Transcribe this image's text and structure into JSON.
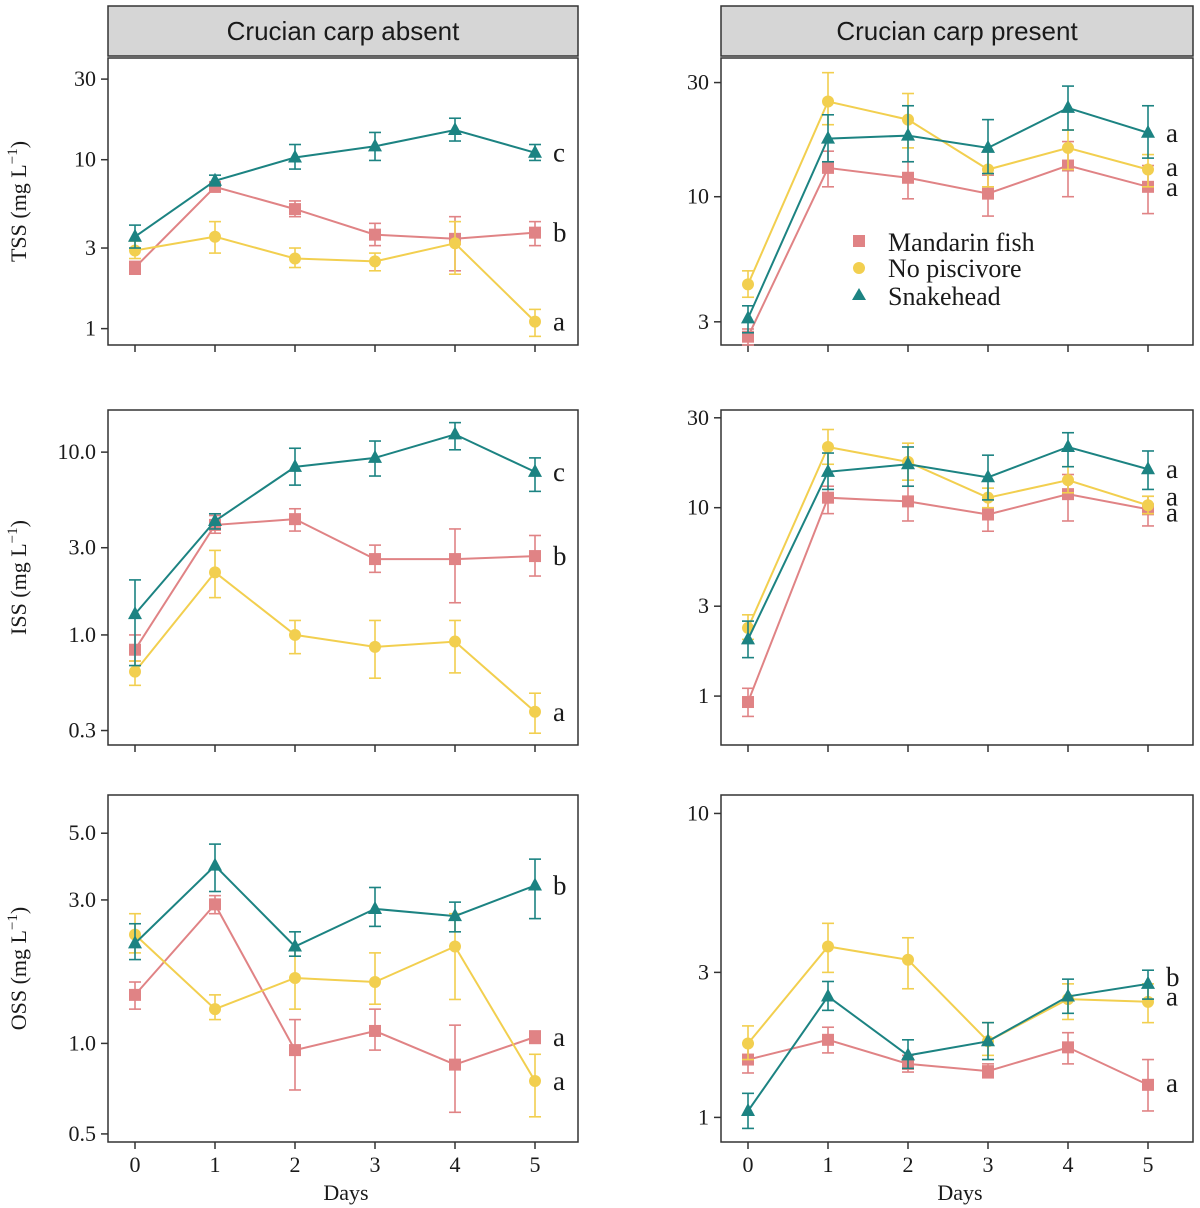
{
  "chart_data": {
    "type": "line",
    "facet_columns": [
      "Crucian carp absent",
      "Crucian carp present"
    ],
    "xlabel": "Days",
    "x": [
      0,
      1,
      2,
      3,
      4,
      5
    ],
    "x_ticks": [
      "0",
      "1",
      "2",
      "3",
      "4",
      "5"
    ],
    "y_scale": "log10",
    "legend": {
      "placement": "inside top panel, Crucian carp present",
      "entries": [
        {
          "name": "Mandarin fish",
          "color": "#e08385",
          "marker": "square"
        },
        {
          "name": "No piscivore",
          "color": "#f2cf4f",
          "marker": "circle"
        },
        {
          "name": "Snakehead",
          "color": "#1c8382",
          "marker": "triangle"
        }
      ]
    },
    "panels": [
      {
        "row": 0,
        "col": 0,
        "ylabel": "TSS",
        "ylim": [
          0.8,
          40
        ],
        "y_ticks": [
          {
            "v": 1,
            "t": "1"
          },
          {
            "v": 3,
            "t": "3"
          },
          {
            "v": 10,
            "t": "10"
          },
          {
            "v": 30,
            "t": "30"
          }
        ],
        "series": [
          {
            "name": "Mandarin fish",
            "values": [
              2.3,
              6.9,
              5.1,
              3.6,
              3.4,
              3.7
            ],
            "lo": [
              2.1,
              6.5,
              4.6,
              3.1,
              2.2,
              3.1
            ],
            "hi": [
              2.5,
              7.4,
              5.7,
              4.2,
              4.6,
              4.3
            ]
          },
          {
            "name": "No piscivore",
            "values": [
              2.9,
              3.5,
              2.6,
              2.5,
              3.2,
              1.1
            ],
            "lo": [
              2.6,
              2.8,
              2.3,
              2.2,
              2.1,
              0.9
            ],
            "hi": [
              3.3,
              4.3,
              3.0,
              2.8,
              4.3,
              1.3
            ]
          },
          {
            "name": "Snakehead",
            "values": [
              3.5,
              7.5,
              10.3,
              12.0,
              15.0,
              11.0
            ],
            "lo": [
              3.0,
              7.0,
              8.8,
              9.9,
              12.9,
              9.9
            ],
            "hi": [
              4.1,
              8.1,
              12.3,
              14.5,
              17.6,
              12.3
            ]
          }
        ],
        "labels": [
          {
            "v": 11.0,
            "t": "c"
          },
          {
            "v": 3.7,
            "t": "b"
          },
          {
            "v": 1.1,
            "t": "a"
          }
        ]
      },
      {
        "row": 0,
        "col": 1,
        "ylabel": "TSS",
        "ylim": [
          2.4,
          38
        ],
        "y_ticks": [
          {
            "v": 3,
            "t": "3"
          },
          {
            "v": 10,
            "t": "10"
          },
          {
            "v": 30,
            "t": "30"
          }
        ],
        "series": [
          {
            "name": "Mandarin fish",
            "values": [
              2.6,
              13.2,
              12.0,
              10.3,
              13.5,
              11.0
            ],
            "lo": [
              2.4,
              11.0,
              9.8,
              8.3,
              10.0,
              8.5
            ],
            "hi": [
              2.8,
              15.5,
              14.0,
              12.3,
              17.0,
              13.5
            ]
          },
          {
            "name": "No piscivore",
            "values": [
              4.3,
              25.0,
              21.0,
              13.0,
              16.0,
              13.0
            ],
            "lo": [
              3.8,
              20.0,
              16.0,
              11.0,
              13.0,
              11.0
            ],
            "hi": [
              4.9,
              33.0,
              27.0,
              15.5,
              19.0,
              15.0
            ]
          },
          {
            "name": "Snakehead",
            "values": [
              3.1,
              17.5,
              18.0,
              16.0,
              23.5,
              18.5
            ],
            "lo": [
              2.7,
              14.0,
              14.0,
              12.5,
              19.0,
              14.5
            ],
            "hi": [
              3.5,
              22.0,
              24.0,
              21.0,
              29.0,
              24.0
            ]
          }
        ],
        "labels": [
          {
            "v": 18.5,
            "t": "a"
          },
          {
            "v": 13.3,
            "t": "a"
          },
          {
            "v": 11.0,
            "t": "a"
          }
        ]
      },
      {
        "row": 1,
        "col": 0,
        "ylabel": "ISS",
        "ylim": [
          0.25,
          17
        ],
        "y_ticks": [
          {
            "v": 0.3,
            "t": "0.3"
          },
          {
            "v": 1,
            "t": "1.0"
          },
          {
            "v": 3,
            "t": "3.0"
          },
          {
            "v": 10,
            "t": "10.0"
          }
        ],
        "series": [
          {
            "name": "Mandarin fish",
            "values": [
              0.83,
              4.0,
              4.3,
              2.6,
              2.6,
              2.7
            ],
            "lo": [
              0.72,
              3.6,
              3.7,
              2.2,
              1.5,
              2.1
            ],
            "hi": [
              1.0,
              4.5,
              4.9,
              3.1,
              3.8,
              3.5
            ]
          },
          {
            "name": "No piscivore",
            "values": [
              0.63,
              2.2,
              1.0,
              0.86,
              0.92,
              0.38
            ],
            "lo": [
              0.53,
              1.6,
              0.79,
              0.58,
              0.62,
              0.29
            ],
            "hi": [
              0.72,
              2.9,
              1.2,
              1.2,
              1.2,
              0.48
            ]
          },
          {
            "name": "Snakehead",
            "values": [
              1.3,
              4.2,
              8.3,
              9.3,
              12.5,
              7.8
            ],
            "lo": [
              0.68,
              3.8,
              6.6,
              7.4,
              10.3,
              6.1
            ],
            "hi": [
              2.0,
              4.6,
              10.5,
              11.5,
              14.5,
              9.3
            ]
          }
        ],
        "labels": [
          {
            "v": 7.8,
            "t": "c"
          },
          {
            "v": 2.7,
            "t": "b"
          },
          {
            "v": 0.38,
            "t": "a"
          }
        ]
      },
      {
        "row": 1,
        "col": 1,
        "ylabel": "ISS",
        "ylim": [
          0.55,
          33
        ],
        "y_ticks": [
          {
            "v": 1,
            "t": "1"
          },
          {
            "v": 3,
            "t": "3"
          },
          {
            "v": 10,
            "t": "10"
          },
          {
            "v": 30,
            "t": "30"
          }
        ],
        "series": [
          {
            "name": "Mandarin fish",
            "values": [
              0.93,
              11.3,
              10.8,
              9.2,
              11.8,
              9.8
            ],
            "lo": [
              0.78,
              9.3,
              8.5,
              7.5,
              8.5,
              8.0
            ],
            "hi": [
              1.1,
              13.0,
              13.0,
              11.0,
              15.0,
              11.5
            ]
          },
          {
            "name": "No piscivore",
            "values": [
              2.3,
              21.0,
              17.5,
              11.3,
              14.0,
              10.3
            ],
            "lo": [
              2.0,
              17.0,
              14.0,
              10.0,
              12.0,
              9.3
            ],
            "hi": [
              2.7,
              26.0,
              22.0,
              12.7,
              16.5,
              11.5
            ]
          },
          {
            "name": "Snakehead",
            "values": [
              2.0,
              15.5,
              17.0,
              14.5,
              21.0,
              16.0
            ],
            "lo": [
              1.6,
              12.5,
              13.0,
              11.0,
              16.5,
              12.5
            ],
            "hi": [
              2.5,
              19.5,
              21.0,
              19.0,
              25.0,
              20.0
            ]
          }
        ],
        "labels": [
          {
            "v": 16.0,
            "t": "a"
          },
          {
            "v": 11.5,
            "t": "a"
          },
          {
            "v": 9.4,
            "t": "a"
          }
        ]
      },
      {
        "row": 2,
        "col": 0,
        "ylabel": "OSS",
        "ylim": [
          0.47,
          6.7
        ],
        "y_ticks": [
          {
            "v": 0.5,
            "t": "0.5"
          },
          {
            "v": 1,
            "t": "1.0"
          },
          {
            "v": 3,
            "t": "3.0"
          },
          {
            "v": 5,
            "t": "5.0"
          }
        ],
        "series": [
          {
            "name": "Mandarin fish",
            "values": [
              1.45,
              2.9,
              0.95,
              1.1,
              0.85,
              1.05
            ],
            "lo": [
              1.3,
              2.7,
              0.7,
              0.95,
              0.59,
              1.0
            ],
            "hi": [
              1.6,
              3.1,
              1.2,
              1.3,
              1.15,
              1.1
            ]
          },
          {
            "name": "No piscivore",
            "values": [
              2.3,
              1.3,
              1.65,
              1.6,
              2.1,
              0.75
            ],
            "lo": [
              2.0,
              1.2,
              1.3,
              1.35,
              1.4,
              0.57
            ],
            "hi": [
              2.7,
              1.45,
              2.05,
              2.0,
              2.7,
              0.92
            ]
          },
          {
            "name": "Snakehead",
            "values": [
              2.15,
              3.9,
              2.1,
              2.8,
              2.65,
              3.35
            ],
            "lo": [
              1.9,
              3.2,
              1.95,
              2.45,
              2.35,
              2.6
            ],
            "hi": [
              2.5,
              4.6,
              2.35,
              3.3,
              2.95,
              4.1
            ]
          }
        ],
        "labels": [
          {
            "v": 3.35,
            "t": "b"
          },
          {
            "v": 1.05,
            "t": "a"
          },
          {
            "v": 0.75,
            "t": "a"
          }
        ]
      },
      {
        "row": 2,
        "col": 1,
        "ylabel": "OSS",
        "ylim": [
          0.83,
          11.5
        ],
        "y_ticks": [
          {
            "v": 1,
            "t": "1"
          },
          {
            "v": 3,
            "t": "3"
          },
          {
            "v": 10,
            "t": "10"
          }
        ],
        "series": [
          {
            "name": "Mandarin fish",
            "values": [
              1.55,
              1.8,
              1.5,
              1.42,
              1.7,
              1.28
            ],
            "lo": [
              1.4,
              1.63,
              1.41,
              1.35,
              1.5,
              1.05
            ],
            "hi": [
              1.75,
              1.98,
              1.6,
              1.5,
              1.9,
              1.55
            ]
          },
          {
            "name": "No piscivore",
            "values": [
              1.75,
              3.65,
              3.3,
              1.78,
              2.45,
              2.4
            ],
            "lo": [
              1.55,
              3.0,
              2.65,
              1.6,
              2.1,
              2.05
            ],
            "hi": [
              2.0,
              4.35,
              3.9,
              2.05,
              2.75,
              2.75
            ]
          },
          {
            "name": "Snakehead",
            "values": [
              1.05,
              2.5,
              1.6,
              1.78,
              2.5,
              2.75
            ],
            "lo": [
              0.92,
              2.25,
              1.45,
              1.55,
              2.2,
              2.45
            ],
            "hi": [
              1.2,
              2.8,
              1.8,
              2.05,
              2.85,
              3.05
            ]
          }
        ],
        "labels": [
          {
            "v": 2.9,
            "t": "b"
          },
          {
            "v": 2.5,
            "t": "a"
          },
          {
            "v": 1.3,
            "t": "a"
          }
        ]
      }
    ]
  }
}
